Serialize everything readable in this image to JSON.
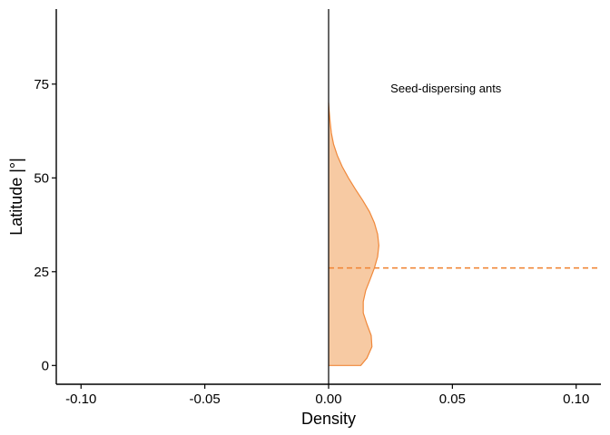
{
  "chart_data": {
    "type": "area",
    "xlabel": "Density",
    "ylabel": "Latitude |°|",
    "xlim": [
      -0.11,
      0.11
    ],
    "ylim": [
      -5,
      95
    ],
    "x_ticks": [
      -0.1,
      -0.05,
      0.0,
      0.05,
      0.1
    ],
    "x_tick_labels": [
      "-0.10",
      "-0.05",
      "0.00",
      "0.05",
      "0.10"
    ],
    "y_ticks": [
      0,
      25,
      50,
      75
    ],
    "y_tick_labels": [
      "0",
      "25",
      "50",
      "75"
    ],
    "annotation": "Seed-dispersing ants",
    "grid": false,
    "colors": {
      "fill": "#f7caa3",
      "line": "#f0883a",
      "reference": "#f0883a",
      "axis": "#000000"
    },
    "series": [
      {
        "density_profile": [
          {
            "latitude": 0,
            "density": 0.013
          },
          {
            "latitude": 2,
            "density": 0.0155
          },
          {
            "latitude": 5,
            "density": 0.0175
          },
          {
            "latitude": 8,
            "density": 0.0172
          },
          {
            "latitude": 11,
            "density": 0.0155
          },
          {
            "latitude": 14,
            "density": 0.014
          },
          {
            "latitude": 17,
            "density": 0.014
          },
          {
            "latitude": 20,
            "density": 0.015
          },
          {
            "latitude": 23,
            "density": 0.0168
          },
          {
            "latitude": 26,
            "density": 0.0185
          },
          {
            "latitude": 29,
            "density": 0.0198
          },
          {
            "latitude": 32,
            "density": 0.0203
          },
          {
            "latitude": 35,
            "density": 0.0198
          },
          {
            "latitude": 38,
            "density": 0.0185
          },
          {
            "latitude": 41,
            "density": 0.0165
          },
          {
            "latitude": 44,
            "density": 0.0138
          },
          {
            "latitude": 47,
            "density": 0.0108
          },
          {
            "latitude": 50,
            "density": 0.008
          },
          {
            "latitude": 53,
            "density": 0.0055
          },
          {
            "latitude": 56,
            "density": 0.0035
          },
          {
            "latitude": 59,
            "density": 0.002
          },
          {
            "latitude": 62,
            "density": 0.0011
          },
          {
            "latitude": 65,
            "density": 0.0006
          },
          {
            "latitude": 68,
            "density": 0.0002
          },
          {
            "latitude": 70,
            "density": 0.0
          }
        ],
        "reference_latitude": 26
      }
    ]
  }
}
